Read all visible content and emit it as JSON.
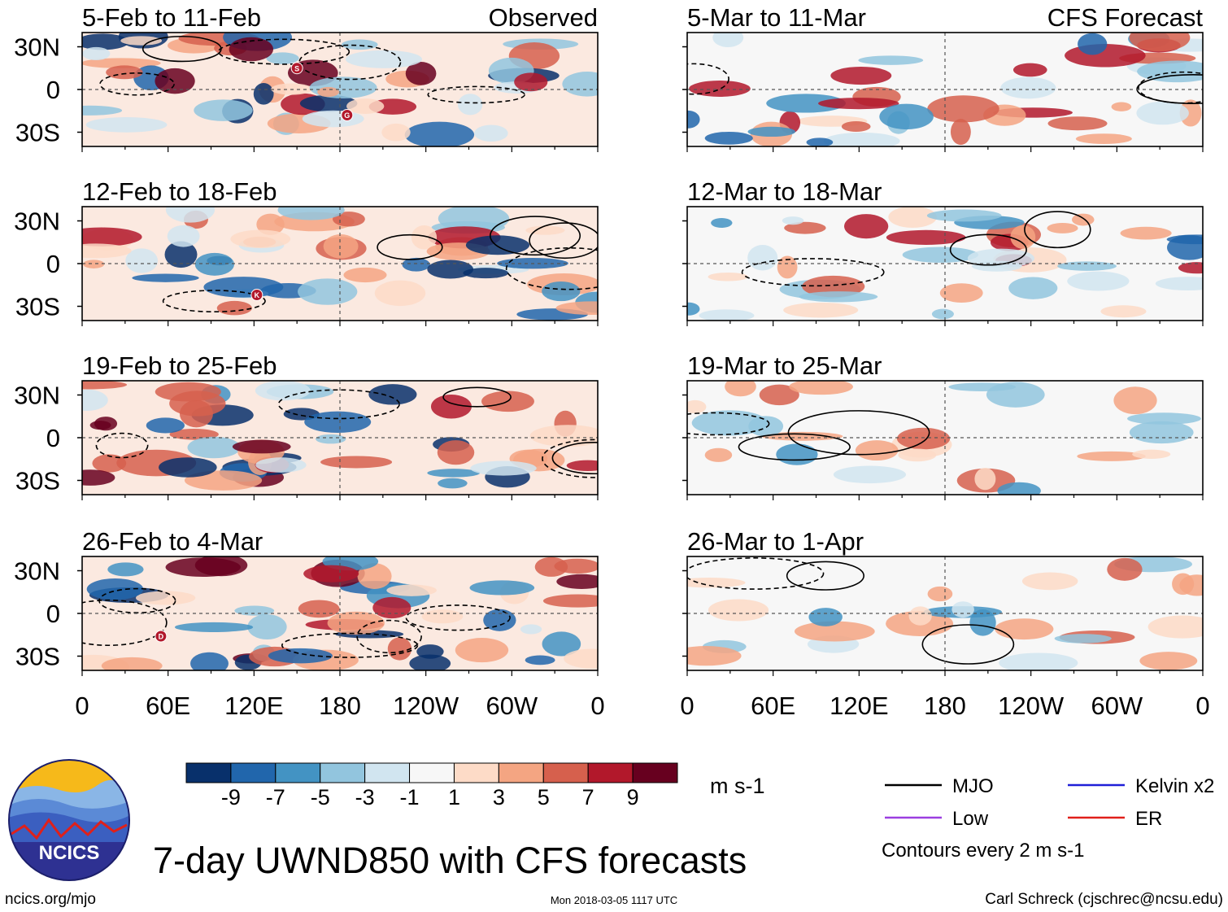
{
  "header": {
    "main_title": "7-day UWND850 with CFS forecasts",
    "logo_text": "NCICS",
    "website": "ncics.org/mjo",
    "timestamp": "Mon 2018-03-05 1117 UTC",
    "author": "Carl Schreck (cjschrec@ncsu.edu)"
  },
  "chart_data": {
    "type": "heatmap",
    "title": "7-day UWND850 with CFS forecasts",
    "variable": "850-hPa zonal wind anomaly",
    "units_label": "m s-1",
    "contour_note": "Contours every 2 m s-1",
    "observed_label": "Observed",
    "forecast_label": "CFS Forecast",
    "lat_ticks": [
      "30N",
      "0",
      "30S"
    ],
    "lat_values": [
      30,
      0,
      -30
    ],
    "ylim": [
      -40,
      40
    ],
    "lon_ticks": [
      "0",
      "60E",
      "120E",
      "180",
      "120W",
      "60W",
      "0"
    ],
    "lon_values": [
      0,
      60,
      120,
      180,
      240,
      300,
      360
    ],
    "xlim": [
      0,
      360
    ],
    "colorbar": {
      "levels": [
        "-9",
        "-7",
        "-5",
        "-3",
        "-1",
        "1",
        "3",
        "5",
        "7",
        "9"
      ],
      "colors": [
        "#08306b",
        "#2166ac",
        "#4393c3",
        "#92c5de",
        "#d1e5f0",
        "#f7f7f7",
        "#fddbc7",
        "#f4a582",
        "#d6604d",
        "#b2182b",
        "#67001f"
      ]
    },
    "legend": [
      {
        "label": "MJO",
        "color": "#000000"
      },
      {
        "label": "Kelvin x2",
        "color": "#1f1fd8"
      },
      {
        "label": "Low",
        "color": "#9b3fe0"
      },
      {
        "label": "ER",
        "color": "#e0201a"
      }
    ],
    "panels": [
      {
        "column": "observed",
        "title": "5-Feb to 11-Feb",
        "tag": "Observed",
        "markers": [
          {
            "letter": "S",
            "lon": 150,
            "lat": 15
          },
          {
            "letter": "G",
            "lon": 185,
            "lat": -18
          }
        ]
      },
      {
        "column": "forecast",
        "title": "5-Mar to 11-Mar",
        "tag": "CFS Forecast",
        "markers": []
      },
      {
        "column": "observed",
        "title": "12-Feb to 18-Feb",
        "tag": "",
        "markers": [
          {
            "letter": "K",
            "lon": 122,
            "lat": -22
          }
        ]
      },
      {
        "column": "forecast",
        "title": "12-Mar to 18-Mar",
        "tag": "",
        "markers": []
      },
      {
        "column": "observed",
        "title": "19-Feb to 25-Feb",
        "tag": "",
        "markers": []
      },
      {
        "column": "forecast",
        "title": "19-Mar to 25-Mar",
        "tag": "",
        "markers": []
      },
      {
        "column": "observed",
        "title": "26-Feb to 4-Mar",
        "tag": "",
        "markers": [
          {
            "letter": "D",
            "lon": 55,
            "lat": -16
          }
        ]
      },
      {
        "column": "forecast",
        "title": "26-Mar to 1-Apr",
        "tag": "",
        "markers": []
      }
    ]
  }
}
